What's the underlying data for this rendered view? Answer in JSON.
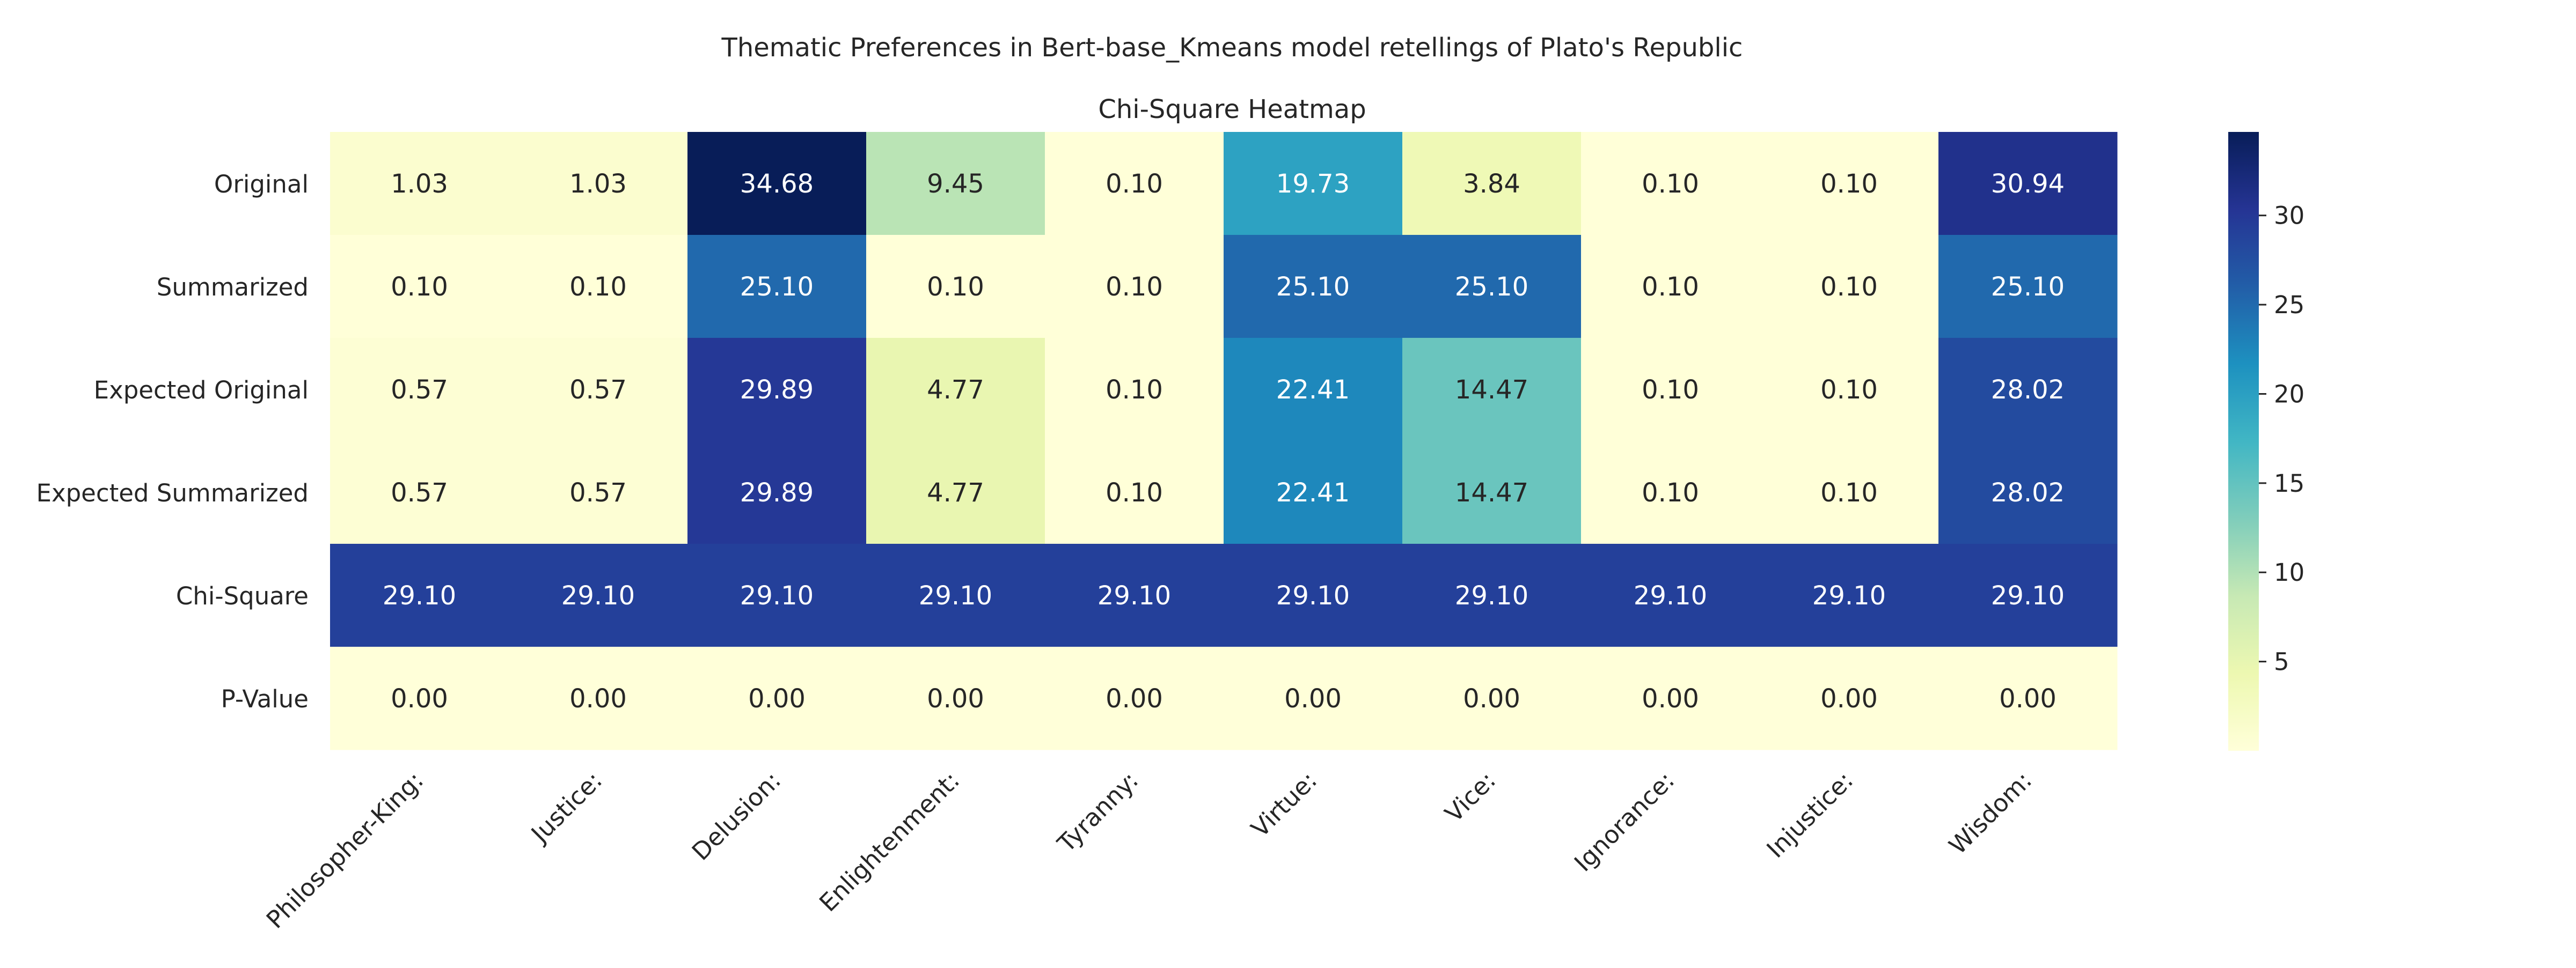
{
  "chart_data": {
    "type": "heatmap",
    "title": "Thematic Preferences in Bert-base_Kmeans model retellings of Plato's Republic",
    "subtitle": "Chi-Square Heatmap",
    "columns": [
      "Philosopher-King:",
      "Justice:",
      "Delusion:",
      "Enlightenment:",
      "Tyranny:",
      "Virtue:",
      "Vice:",
      "Ignorance:",
      "Injustice:",
      "Wisdom:"
    ],
    "rows": [
      "Original",
      "Summarized",
      "Expected Original",
      "Expected Summarized",
      "Chi-Square",
      "P-Value"
    ],
    "values": [
      [
        1.03,
        1.03,
        34.68,
        9.45,
        0.1,
        19.73,
        3.84,
        0.1,
        0.1,
        30.94
      ],
      [
        0.1,
        0.1,
        25.1,
        0.1,
        0.1,
        25.1,
        25.1,
        0.1,
        0.1,
        25.1
      ],
      [
        0.57,
        0.57,
        29.89,
        4.77,
        0.1,
        22.41,
        14.47,
        0.1,
        0.1,
        28.02
      ],
      [
        0.57,
        0.57,
        29.89,
        4.77,
        0.1,
        22.41,
        14.47,
        0.1,
        0.1,
        28.02
      ],
      [
        29.1,
        29.1,
        29.1,
        29.1,
        29.1,
        29.1,
        29.1,
        29.1,
        29.1,
        29.1
      ],
      [
        0.0,
        0.0,
        0.0,
        0.0,
        0.0,
        0.0,
        0.0,
        0.0,
        0.0,
        0.0
      ]
    ],
    "value_format": "2 decimals",
    "colormap": "YlGnBu",
    "color_range": [
      0.0,
      34.68
    ],
    "colorbar_ticks": [
      5,
      10,
      15,
      20,
      25,
      30
    ],
    "legend": "colorbar right",
    "grid": false
  }
}
